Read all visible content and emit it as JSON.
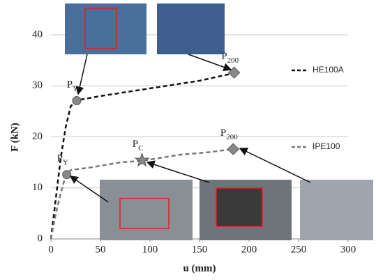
{
  "chart_data": {
    "type": "line",
    "xlabel": "u (mm)",
    "ylabel": "F (kN)",
    "xlim": [
      0,
      300
    ],
    "ylim": [
      0,
      40
    ],
    "xticks": [
      0,
      50,
      100,
      150,
      200,
      250,
      300
    ],
    "yticks": [
      0,
      10,
      20,
      30,
      40
    ],
    "grid": true,
    "series": [
      {
        "name": "HE100A",
        "color": "#111111",
        "x": [
          0,
          5,
          10,
          15,
          20,
          25,
          30,
          50,
          100,
          150,
          185
        ],
        "values": [
          0,
          8,
          16,
          22,
          26,
          27,
          27.3,
          28,
          29.5,
          31,
          32.5
        ],
        "points": [
          {
            "base": "P",
            "sub": "Y",
            "x": 26,
            "y": 27.1,
            "marker": "circle"
          },
          {
            "base": "P",
            "sub": "200",
            "x": 185,
            "y": 32.6,
            "marker": "diamond"
          }
        ]
      },
      {
        "name": "IPE100",
        "color": "#777777",
        "x": [
          0,
          5,
          10,
          15,
          20,
          40,
          70,
          92,
          130,
          160,
          184
        ],
        "values": [
          0,
          5,
          9,
          12.5,
          13.5,
          14,
          15,
          15.3,
          16.5,
          17,
          17.6
        ],
        "points": [
          {
            "base": "P",
            "sub": "Y",
            "x": 16,
            "y": 12.6,
            "marker": "circle"
          },
          {
            "base": "P",
            "sub": "C",
            "x": 92,
            "y": 15.4,
            "marker": "star"
          },
          {
            "base": "P",
            "sub": "200",
            "x": 184,
            "y": 17.6,
            "marker": "diamond"
          }
        ]
      }
    ]
  }
}
